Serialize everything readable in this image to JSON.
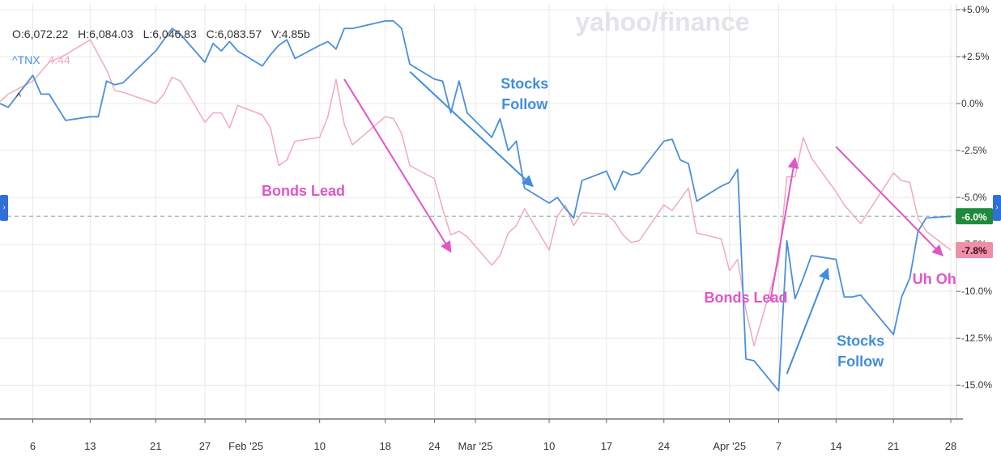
{
  "watermark": "yahoo/finance",
  "header": {
    "open": "O:6,072.22",
    "high": "H:6,084.03",
    "low": "L:6,046.83",
    "close": "C:6,083.57",
    "volume": "V:4.85b",
    "compare_symbol": "^TNX",
    "compare_value": "4.44"
  },
  "colors": {
    "stocks": "#4a8fdc",
    "bonds": "#f3a8bf",
    "bonds_annotation": "#e056c8",
    "stocks_annotation": "#3f8de0",
    "stocks_badge": "#1f8a3b",
    "bonds_badge": "#f08fa8",
    "grid": "#e9e9e9",
    "zero_line": "#7fa8a0"
  },
  "chart_data": {
    "type": "line",
    "title": "",
    "ylim": [
      -16.8,
      5.3
    ],
    "y_axis_side": "right",
    "y_ticks": [
      5,
      2.5,
      0,
      -2.5,
      -5,
      -7.5,
      -10,
      -12.5,
      -15
    ],
    "y_tick_labels": [
      "+5.0%",
      "+2.5%",
      "0.0%",
      "-2.5%",
      "-5.0%",
      "-7.5%",
      "-10.0%",
      "-12.5%",
      "-15.0%"
    ],
    "x_ticks": [
      {
        "label": "6",
        "date": "2025-01-06"
      },
      {
        "label": "13",
        "date": "2025-01-13"
      },
      {
        "label": "21",
        "date": "2025-01-21"
      },
      {
        "label": "27",
        "date": "2025-01-27"
      },
      {
        "label": "Feb '25",
        "date": "2025-02-01"
      },
      {
        "label": "10",
        "date": "2025-02-10"
      },
      {
        "label": "18",
        "date": "2025-02-18"
      },
      {
        "label": "24",
        "date": "2025-02-24"
      },
      {
        "label": "Mar '25",
        "date": "2025-03-01"
      },
      {
        "label": "10",
        "date": "2025-03-10"
      },
      {
        "label": "17",
        "date": "2025-03-17"
      },
      {
        "label": "24",
        "date": "2025-03-24"
      },
      {
        "label": "Apr '25",
        "date": "2025-04-01"
      },
      {
        "label": "7",
        "date": "2025-04-07"
      },
      {
        "label": "14",
        "date": "2025-04-14"
      },
      {
        "label": "21",
        "date": "2025-04-21"
      },
      {
        "label": "28",
        "date": "2025-04-28"
      }
    ],
    "x_start": "2025-01-02",
    "x_end": "2025-04-28",
    "series": [
      {
        "key": "stocks",
        "points": [
          [
            "2025-01-02",
            0.0
          ],
          [
            "2025-01-03",
            -0.2
          ],
          [
            "2025-01-06",
            1.5
          ],
          [
            "2025-01-07",
            0.5
          ],
          [
            "2025-01-08",
            0.5
          ],
          [
            "2025-01-10",
            -0.9
          ],
          [
            "2025-01-13",
            -0.7
          ],
          [
            "2025-01-14",
            -0.7
          ],
          [
            "2025-01-15",
            1.2
          ],
          [
            "2025-01-16",
            1.0
          ],
          [
            "2025-01-17",
            1.1
          ],
          [
            "2025-01-21",
            2.8
          ],
          [
            "2025-01-22",
            3.4
          ],
          [
            "2025-01-23",
            4.0
          ],
          [
            "2025-01-24",
            3.7
          ],
          [
            "2025-01-27",
            2.2
          ],
          [
            "2025-01-28",
            3.2
          ],
          [
            "2025-01-29",
            2.8
          ],
          [
            "2025-01-30",
            3.3
          ],
          [
            "2025-01-31",
            2.8
          ],
          [
            "2025-02-03",
            2.0
          ],
          [
            "2025-02-04",
            2.6
          ],
          [
            "2025-02-05",
            3.1
          ],
          [
            "2025-02-06",
            3.4
          ],
          [
            "2025-02-07",
            2.4
          ],
          [
            "2025-02-10",
            3.1
          ],
          [
            "2025-02-11",
            3.3
          ],
          [
            "2025-02-12",
            2.9
          ],
          [
            "2025-02-13",
            4.0
          ],
          [
            "2025-02-14",
            4.0
          ],
          [
            "2025-02-18",
            4.4
          ],
          [
            "2025-02-19",
            4.4
          ],
          [
            "2025-02-20",
            4.0
          ],
          [
            "2025-02-21",
            2.1
          ],
          [
            "2025-02-24",
            1.3
          ],
          [
            "2025-02-25",
            1.2
          ],
          [
            "2025-02-26",
            -0.5
          ],
          [
            "2025-02-27",
            1.2
          ],
          [
            "2025-02-28",
            -0.5
          ],
          [
            "2025-03-03",
            -1.8
          ],
          [
            "2025-03-04",
            -0.8
          ],
          [
            "2025-03-05",
            -2.5
          ],
          [
            "2025-03-06",
            -2.0
          ],
          [
            "2025-03-07",
            -4.5
          ],
          [
            "2025-03-10",
            -5.3
          ],
          [
            "2025-03-11",
            -5.0
          ],
          [
            "2025-03-12",
            -5.6
          ],
          [
            "2025-03-13",
            -6.1
          ],
          [
            "2025-03-14",
            -4.1
          ],
          [
            "2025-03-17",
            -3.6
          ],
          [
            "2025-03-18",
            -4.6
          ],
          [
            "2025-03-19",
            -3.6
          ],
          [
            "2025-03-20",
            -3.8
          ],
          [
            "2025-03-21",
            -3.7
          ],
          [
            "2025-03-24",
            -2.0
          ],
          [
            "2025-03-25",
            -1.9
          ],
          [
            "2025-03-26",
            -3.0
          ],
          [
            "2025-03-27",
            -3.2
          ],
          [
            "2025-03-28",
            -5.2
          ],
          [
            "2025-03-31",
            -4.4
          ],
          [
            "2025-04-01",
            -4.2
          ],
          [
            "2025-04-02",
            -3.5
          ],
          [
            "2025-04-03",
            -13.6
          ],
          [
            "2025-04-04",
            -13.7
          ],
          [
            "2025-04-07",
            -15.3
          ],
          [
            "2025-04-08",
            -7.3
          ],
          [
            "2025-04-09",
            -10.4
          ],
          [
            "2025-04-10",
            -9.3
          ],
          [
            "2025-04-11",
            -8.1
          ],
          [
            "2025-04-14",
            -8.3
          ],
          [
            "2025-04-15",
            -10.3
          ],
          [
            "2025-04-16",
            -10.3
          ],
          [
            "2025-04-17",
            -10.2
          ],
          [
            "2025-04-21",
            -12.3
          ],
          [
            "2025-04-22",
            -10.3
          ],
          [
            "2025-04-23",
            -9.3
          ],
          [
            "2025-04-24",
            -6.8
          ],
          [
            "2025-04-25",
            -6.1
          ],
          [
            "2025-04-28",
            -6.0
          ]
        ]
      },
      {
        "key": "bonds",
        "points": [
          [
            "2025-01-02",
            0.1
          ],
          [
            "2025-01-03",
            0.5
          ],
          [
            "2025-01-06",
            1.2
          ],
          [
            "2025-01-08",
            2.2
          ],
          [
            "2025-01-10",
            2.6
          ],
          [
            "2025-01-13",
            3.4
          ],
          [
            "2025-01-14",
            2.6
          ],
          [
            "2025-01-15",
            1.8
          ],
          [
            "2025-01-16",
            0.7
          ],
          [
            "2025-01-17",
            0.6
          ],
          [
            "2025-01-21",
            0.0
          ],
          [
            "2025-01-22",
            0.5
          ],
          [
            "2025-01-23",
            1.4
          ],
          [
            "2025-01-24",
            1.2
          ],
          [
            "2025-01-27",
            -1.0
          ],
          [
            "2025-01-28",
            -0.5
          ],
          [
            "2025-01-29",
            -0.5
          ],
          [
            "2025-01-30",
            -1.3
          ],
          [
            "2025-01-31",
            -0.1
          ],
          [
            "2025-02-03",
            -0.6
          ],
          [
            "2025-02-04",
            -1.3
          ],
          [
            "2025-02-05",
            -3.3
          ],
          [
            "2025-02-06",
            -3.0
          ],
          [
            "2025-02-07",
            -2.0
          ],
          [
            "2025-02-10",
            -1.8
          ],
          [
            "2025-02-11",
            -0.7
          ],
          [
            "2025-02-12",
            1.3
          ],
          [
            "2025-02-13",
            -1.1
          ],
          [
            "2025-02-14",
            -2.2
          ],
          [
            "2025-02-18",
            -0.7
          ],
          [
            "2025-02-19",
            -0.8
          ],
          [
            "2025-02-20",
            -1.6
          ],
          [
            "2025-02-21",
            -3.3
          ],
          [
            "2025-02-24",
            -4.0
          ],
          [
            "2025-02-25",
            -5.6
          ],
          [
            "2025-02-26",
            -7.0
          ],
          [
            "2025-02-27",
            -6.8
          ],
          [
            "2025-02-28",
            -7.1
          ],
          [
            "2025-03-03",
            -8.6
          ],
          [
            "2025-03-04",
            -8.1
          ],
          [
            "2025-03-05",
            -6.9
          ],
          [
            "2025-03-06",
            -6.5
          ],
          [
            "2025-03-07",
            -5.6
          ],
          [
            "2025-03-10",
            -7.8
          ],
          [
            "2025-03-11",
            -6.0
          ],
          [
            "2025-03-12",
            -5.4
          ],
          [
            "2025-03-13",
            -6.5
          ],
          [
            "2025-03-14",
            -5.8
          ],
          [
            "2025-03-17",
            -5.9
          ],
          [
            "2025-03-18",
            -6.3
          ],
          [
            "2025-03-19",
            -7.0
          ],
          [
            "2025-03-20",
            -7.4
          ],
          [
            "2025-03-21",
            -7.3
          ],
          [
            "2025-03-24",
            -5.4
          ],
          [
            "2025-03-25",
            -5.7
          ],
          [
            "2025-03-26",
            -5.1
          ],
          [
            "2025-03-27",
            -4.5
          ],
          [
            "2025-03-28",
            -6.9
          ],
          [
            "2025-03-31",
            -7.2
          ],
          [
            "2025-04-01",
            -8.9
          ],
          [
            "2025-04-02",
            -8.3
          ],
          [
            "2025-04-03",
            -11.0
          ],
          [
            "2025-04-04",
            -12.9
          ],
          [
            "2025-04-07",
            -8.4
          ],
          [
            "2025-04-08",
            -3.9
          ],
          [
            "2025-04-09",
            -3.9
          ],
          [
            "2025-04-10",
            -1.8
          ],
          [
            "2025-04-11",
            -2.9
          ],
          [
            "2025-04-14",
            -4.7
          ],
          [
            "2025-04-15",
            -5.4
          ],
          [
            "2025-04-16",
            -5.9
          ],
          [
            "2025-04-17",
            -6.4
          ],
          [
            "2025-04-21",
            -3.7
          ],
          [
            "2025-04-22",
            -4.1
          ],
          [
            "2025-04-23",
            -4.2
          ],
          [
            "2025-04-24",
            -6.1
          ],
          [
            "2025-04-25",
            -6.8
          ],
          [
            "2025-04-28",
            -7.8
          ]
        ]
      }
    ],
    "reference_line": -6.0,
    "badges": [
      {
        "series": "stocks",
        "label": "-6.0%",
        "value": -6.0
      },
      {
        "series": "bonds",
        "label": "-7.8%",
        "value": -7.8
      }
    ],
    "annotations": [
      {
        "text": "Bonds Lead",
        "color_key": "bonds_annotation",
        "at": [
          "2025-02-08",
          -4.9
        ]
      },
      {
        "text": "Stocks",
        "color_key": "stocks_annotation",
        "at": [
          "2025-03-07",
          0.8
        ]
      },
      {
        "text": "Follow",
        "color_key": "stocks_annotation",
        "at": [
          "2025-03-07",
          -0.3
        ]
      },
      {
        "text": "Bonds Lead",
        "color_key": "bonds_annotation",
        "at": [
          "2025-04-03",
          -10.6
        ]
      },
      {
        "text": "Stocks",
        "color_key": "stocks_annotation",
        "at": [
          "2025-04-17",
          -12.9
        ]
      },
      {
        "text": "Follow",
        "color_key": "stocks_annotation",
        "at": [
          "2025-04-17",
          -14.0
        ]
      },
      {
        "text": "Uh Oh",
        "color_key": "bonds_annotation",
        "at": [
          "2025-04-26",
          -9.6
        ]
      }
    ],
    "arrows": [
      {
        "color_key": "bonds_annotation",
        "from": [
          "2025-02-13",
          1.3
        ],
        "to": [
          "2025-02-26",
          -7.9
        ]
      },
      {
        "color_key": "stocks_annotation",
        "from": [
          "2025-02-21",
          1.7
        ],
        "to": [
          "2025-03-08",
          -4.4
        ]
      },
      {
        "color_key": "bonds_annotation",
        "from": [
          "2025-04-06",
          -10.5
        ],
        "to": [
          "2025-04-09",
          -2.9
        ]
      },
      {
        "color_key": "stocks_annotation",
        "from": [
          "2025-04-08",
          -14.4
        ],
        "to": [
          "2025-04-13",
          -8.8
        ]
      },
      {
        "color_key": "bonds_annotation",
        "from": [
          "2025-04-14",
          -2.3
        ],
        "to": [
          "2025-04-27",
          -8.1
        ]
      }
    ]
  }
}
